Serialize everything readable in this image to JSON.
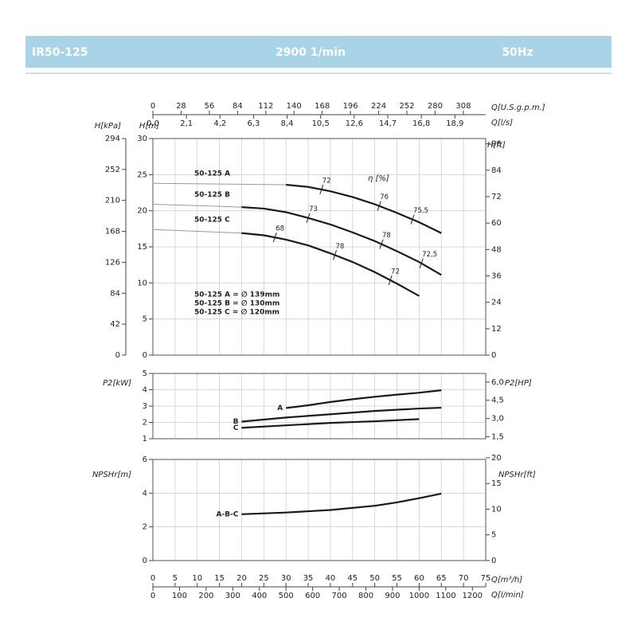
{
  "header": {
    "model": "IR50-125",
    "speed": "2900 1/min",
    "frequency": "50Hz"
  },
  "chart_data": [
    {
      "type": "line",
      "xlim": [
        0,
        75
      ],
      "ylim": [
        0,
        30
      ],
      "yticks": [
        0,
        5,
        10,
        15,
        20,
        25,
        30
      ],
      "y_label": "H[m]",
      "y3lim": [
        0,
        294
      ],
      "y3ticks": [
        0,
        42,
        84,
        126,
        168,
        210,
        252,
        294
      ],
      "y3_label": "H[kPa]",
      "y2lim": [
        0,
        98.4
      ],
      "y2ticks": [
        0,
        12,
        24,
        36,
        48,
        60,
        72,
        84,
        96
      ],
      "y2_label": "H[ft]",
      "x2lim": [
        0,
        330.2
      ],
      "x2ticks": [
        0,
        28,
        56,
        84,
        112,
        140,
        168,
        196,
        224,
        252,
        280,
        308
      ],
      "x2_label": "Q[U.S.g.p.m.]",
      "x3lim": [
        0,
        20.83
      ],
      "x3ticks": [
        {
          "value": 0,
          "label": "0,0"
        },
        {
          "value": 2.1,
          "label": "2,1"
        },
        {
          "value": 4.2,
          "label": "4,2"
        },
        {
          "value": 6.3,
          "label": "6,3"
        },
        {
          "value": 8.4,
          "label": "8,4"
        },
        {
          "value": 10.5,
          "label": "10,5"
        },
        {
          "value": 12.6,
          "label": "12,6"
        },
        {
          "value": 14.7,
          "label": "14,7"
        },
        {
          "value": 16.8,
          "label": "16,8"
        },
        {
          "value": 18.9,
          "label": "18,9"
        }
      ],
      "x3_label": "Q[l/s]",
      "efficiency_label": "η [%]",
      "notes": [
        "50-125 A = ∅ 139mm",
        "50-125 B = ∅ 130mm",
        "50-125 C = ∅ 120mm"
      ],
      "series": [
        {
          "name": "50-125 A",
          "color": "#1a1a1a",
          "x": [
            30,
            35,
            40,
            45,
            50,
            55,
            60,
            65
          ],
          "values": [
            23.6,
            23.3,
            22.7,
            21.9,
            20.9,
            19.7,
            18.4,
            16.9
          ],
          "eff_x": [
            38,
            51,
            58.5
          ],
          "eff_values": [
            72,
            76,
            75.5
          ],
          "eff_labels": [
            "72",
            "76",
            "75,5"
          ]
        },
        {
          "name": "50-125 B",
          "color": "#1a1a1a",
          "x": [
            20,
            25,
            30,
            35,
            40,
            45,
            50,
            55,
            60,
            65
          ],
          "values": [
            20.5,
            20.3,
            19.8,
            19.0,
            18.1,
            17.0,
            15.8,
            14.4,
            12.9,
            11.1
          ],
          "eff_x": [
            35,
            51.5,
            60.5
          ],
          "eff_values": [
            73,
            78,
            72.5
          ],
          "eff_labels": [
            "73",
            "78",
            "72,5"
          ]
        },
        {
          "name": "50-125 C",
          "color": "#1a1a1a",
          "x": [
            20,
            25,
            30,
            35,
            40,
            45,
            50,
            55,
            60
          ],
          "values": [
            16.9,
            16.6,
            16.0,
            15.2,
            14.1,
            12.9,
            11.5,
            9.9,
            8.2
          ],
          "eff_x": [
            27.5,
            41,
            53.5
          ],
          "eff_values": [
            68,
            78,
            72
          ],
          "eff_labels": [
            "68",
            "78",
            "72"
          ]
        }
      ],
      "low_flow": [
        {
          "color": "#9a9a9a",
          "x": [
            0,
            30
          ],
          "values": [
            23.8,
            23.6
          ]
        },
        {
          "color": "#9a9a9a",
          "x": [
            0,
            20
          ],
          "values": [
            20.9,
            20.5
          ]
        },
        {
          "color": "#9a9a9a",
          "x": [
            0,
            20
          ],
          "values": [
            17.4,
            16.9
          ]
        }
      ]
    },
    {
      "type": "line",
      "xlim": [
        0,
        75
      ],
      "ylim": [
        1,
        5
      ],
      "yticks": [
        1,
        2,
        3,
        4,
        5
      ],
      "y_label": "P2[kW]",
      "y2lim": [
        1.341,
        6.705
      ],
      "y2ticks": [
        {
          "value": 1.5,
          "label": "1,5"
        },
        {
          "value": 3,
          "label": "3,0"
        },
        {
          "value": 4.5,
          "label": "4,5"
        },
        {
          "value": 6,
          "label": "6,0"
        }
      ],
      "y2_label": "P2[HP]",
      "series": [
        {
          "name": "A",
          "color": "#1a1a1a",
          "x": [
            30,
            35,
            40,
            45,
            50,
            55,
            60,
            65
          ],
          "values": [
            2.88,
            3.05,
            3.25,
            3.42,
            3.57,
            3.7,
            3.82,
            3.97
          ]
        },
        {
          "name": "B",
          "color": "#1a1a1a",
          "x": [
            20,
            30,
            40,
            50,
            60,
            65
          ],
          "values": [
            2.05,
            2.3,
            2.5,
            2.7,
            2.85,
            2.9
          ]
        },
        {
          "name": "C",
          "color": "#1a1a1a",
          "x": [
            20,
            30,
            40,
            50,
            60
          ],
          "values": [
            1.67,
            1.82,
            1.97,
            2.07,
            2.2
          ]
        }
      ]
    },
    {
      "type": "line",
      "xlim": [
        0,
        75
      ],
      "xticks": [
        0,
        5,
        10,
        15,
        20,
        25,
        30,
        35,
        40,
        45,
        50,
        55,
        60,
        65,
        70,
        75
      ],
      "x_label": "Q[m³/h]",
      "x4lim": [
        0,
        1250
      ],
      "x4ticks": [
        0,
        100,
        200,
        300,
        400,
        500,
        600,
        700,
        800,
        900,
        1000,
        1100,
        1200
      ],
      "x4_label": "Q[l/min]",
      "ylim": [
        0,
        6
      ],
      "yticks": [
        0,
        2,
        4,
        6
      ],
      "y_label": "NPSHr[m]",
      "y2lim": [
        0,
        19.685
      ],
      "y2ticks": [
        0,
        5,
        10,
        15,
        20
      ],
      "y2_label": "NPSHr[ft]",
      "series": [
        {
          "name": "A-B-C",
          "color": "#1a1a1a",
          "x": [
            20,
            30,
            40,
            50,
            55,
            60,
            65
          ],
          "values": [
            2.75,
            2.85,
            3.0,
            3.25,
            3.45,
            3.7,
            3.97
          ]
        }
      ]
    }
  ]
}
